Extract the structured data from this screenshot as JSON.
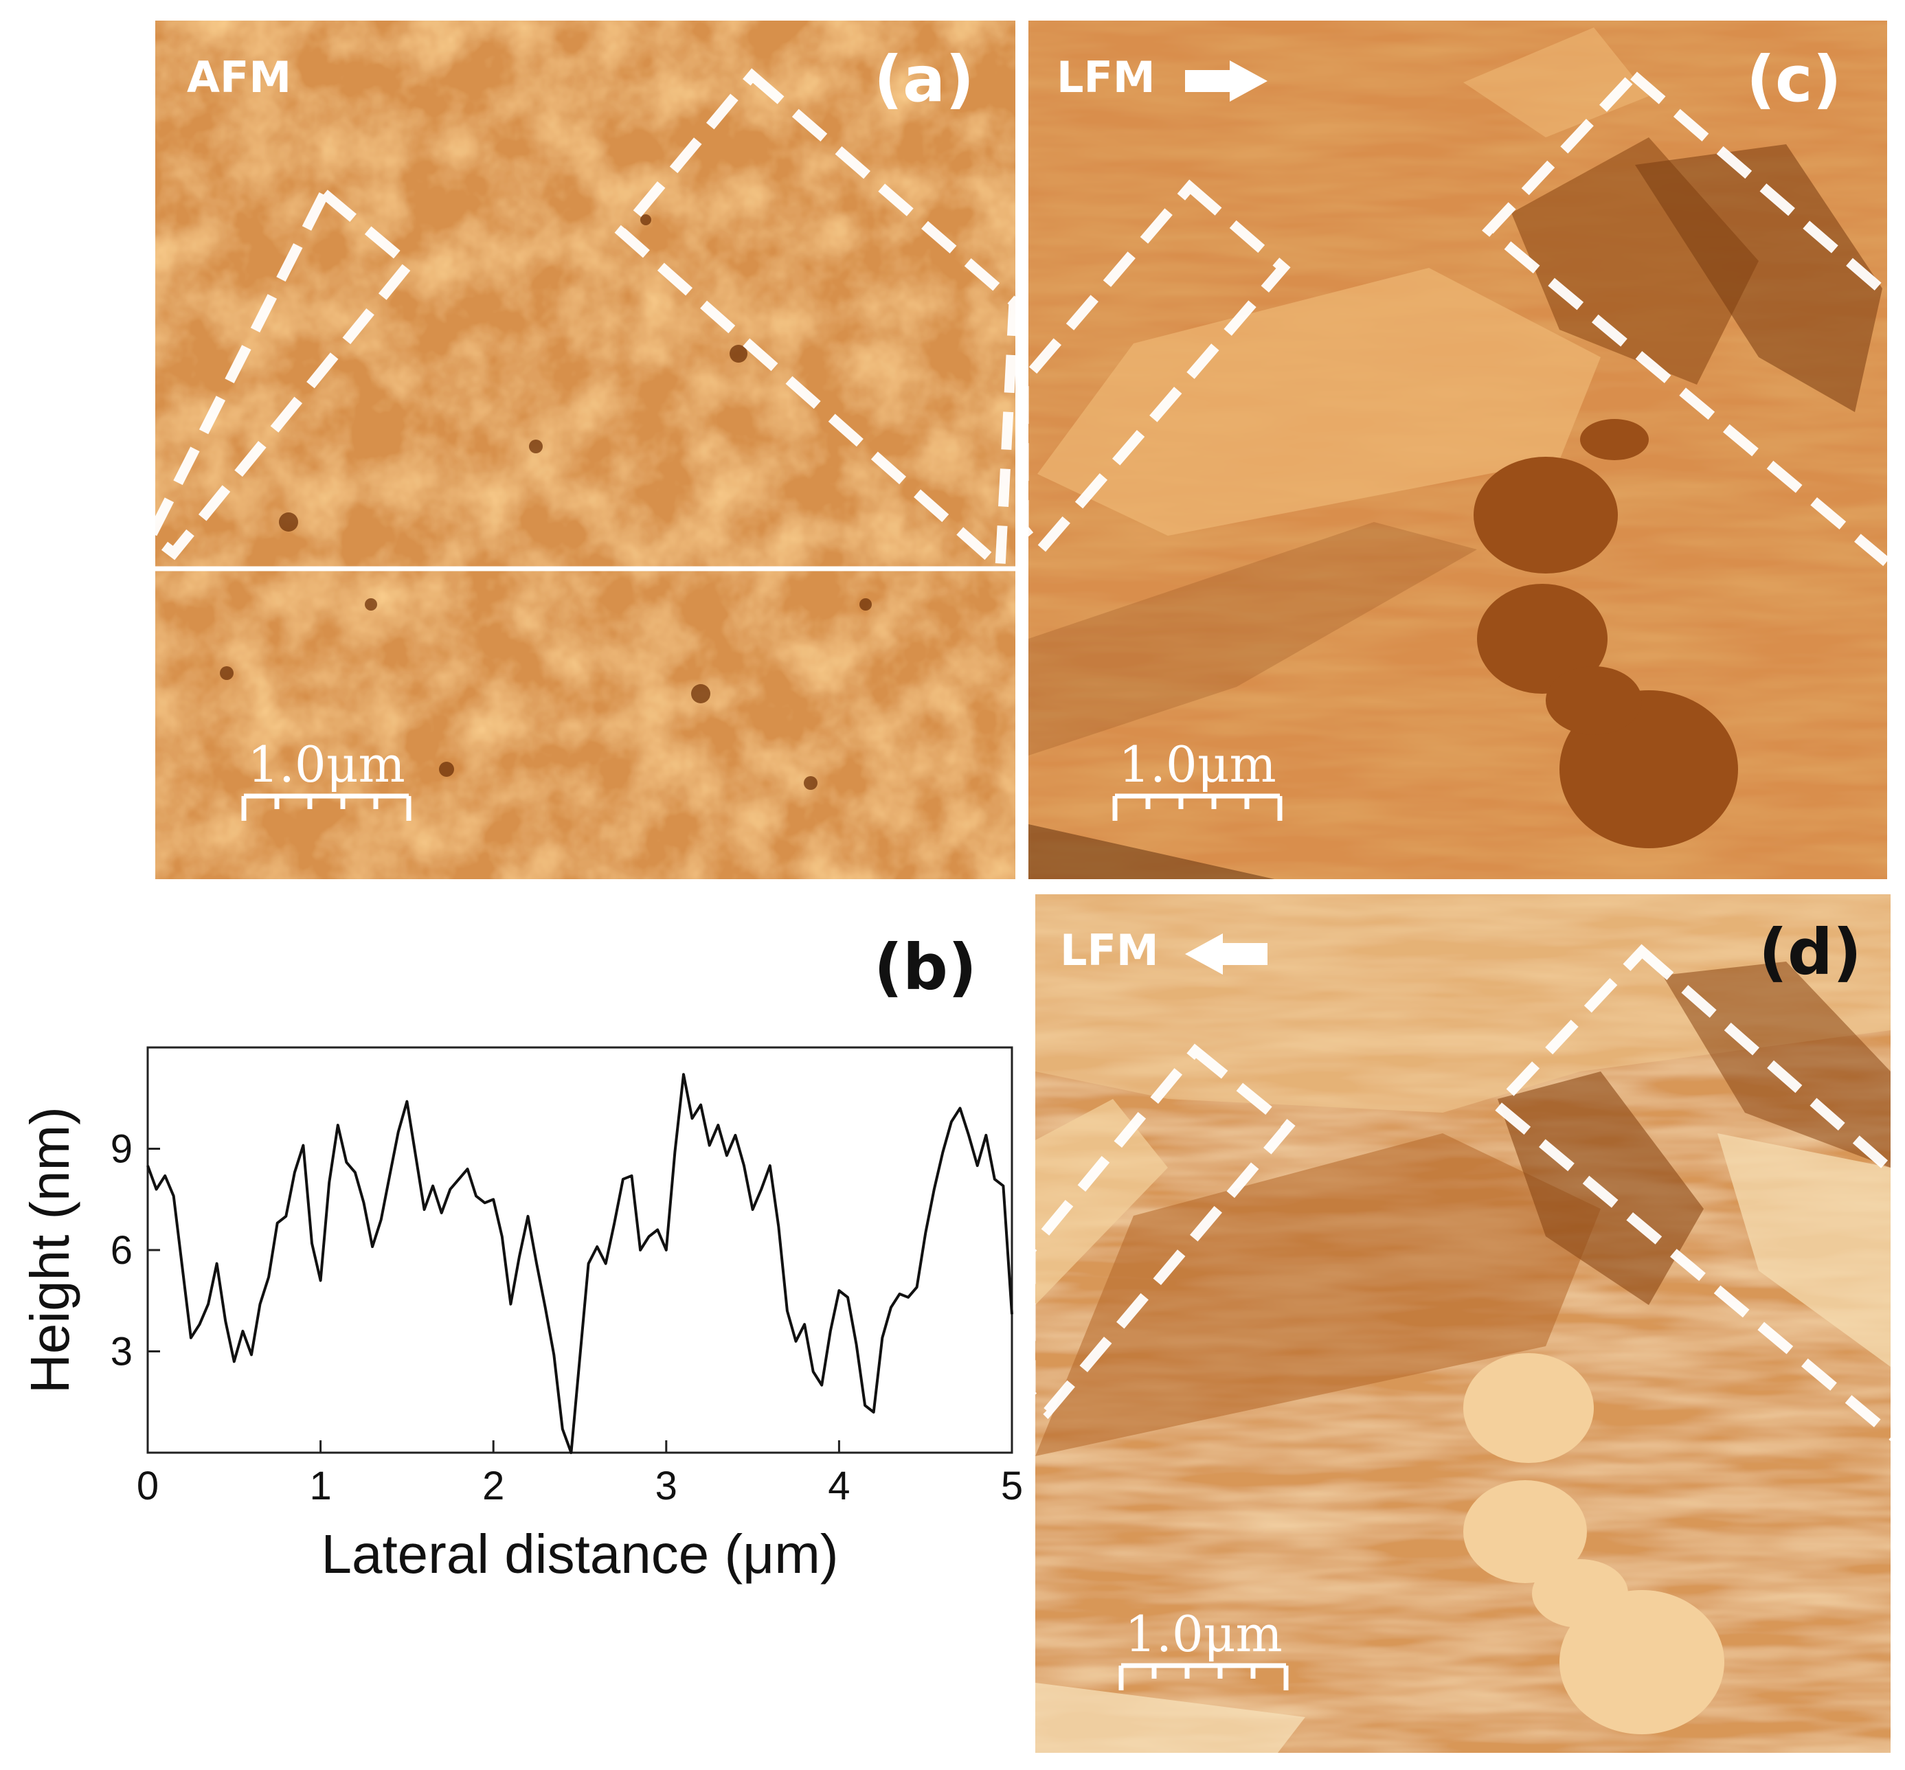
{
  "panels": {
    "a": {
      "letter": "(a)",
      "mode": "AFM",
      "scalebar": "1.0μm"
    },
    "b": {
      "letter": "(b)"
    },
    "c": {
      "letter": "(c)",
      "mode": "LFM",
      "scan_direction": "right",
      "scalebar": "1.0μm"
    },
    "d": {
      "letter": "(d)",
      "mode": "LFM",
      "scan_direction": "left",
      "scalebar": "1.0μm"
    }
  },
  "colors": {
    "afm_base": "#d58a40",
    "afm_light": "#f0c079",
    "afm_dark": "#7a3a0f",
    "dashed_box": "#ffffff",
    "curve": "#111111"
  },
  "chart_data": {
    "type": "line",
    "xlabel": "Lateral distance (μm)",
    "ylabel": "Height (nm)",
    "xlim": [
      0,
      5
    ],
    "ylim": [
      0,
      12
    ],
    "xticks": [
      0,
      1,
      2,
      3,
      4,
      5
    ],
    "yticks": [
      3,
      6,
      9
    ],
    "grid": false,
    "series": [
      {
        "x": [
          0.0,
          0.05,
          0.1,
          0.15,
          0.2,
          0.25,
          0.3,
          0.35,
          0.4,
          0.45,
          0.5,
          0.55,
          0.6,
          0.65,
          0.7,
          0.75,
          0.8,
          0.85,
          0.9,
          0.95,
          1.0,
          1.05,
          1.1,
          1.15,
          1.2,
          1.25,
          1.3,
          1.35,
          1.4,
          1.45,
          1.5,
          1.55,
          1.6,
          1.65,
          1.7,
          1.75,
          1.8,
          1.85,
          1.9,
          1.95,
          2.0,
          2.05,
          2.1,
          2.15,
          2.2,
          2.25,
          2.3,
          2.35,
          2.4,
          2.45,
          2.5,
          2.55,
          2.6,
          2.65,
          2.7,
          2.75,
          2.8,
          2.85,
          2.9,
          2.95,
          3.0,
          3.05,
          3.1,
          3.15,
          3.2,
          3.25,
          3.3,
          3.35,
          3.4,
          3.45,
          3.5,
          3.55,
          3.6,
          3.65,
          3.7,
          3.75,
          3.8,
          3.85,
          3.9,
          3.95,
          4.0,
          4.05,
          4.1,
          4.15,
          4.2,
          4.25,
          4.3,
          4.35,
          4.4,
          4.45,
          4.5,
          4.55,
          4.6,
          4.65,
          4.7,
          4.75,
          4.8,
          4.85,
          4.9,
          4.95,
          5.0
        ],
        "y": [
          8.5,
          7.8,
          8.2,
          7.6,
          5.5,
          3.4,
          3.8,
          4.4,
          5.6,
          3.9,
          2.7,
          3.6,
          2.9,
          4.4,
          5.2,
          6.8,
          7.0,
          8.3,
          9.1,
          6.2,
          5.1,
          8.0,
          9.7,
          8.6,
          8.3,
          7.4,
          6.1,
          6.9,
          8.2,
          9.5,
          10.4,
          8.8,
          7.2,
          7.9,
          7.1,
          7.8,
          8.1,
          8.4,
          7.6,
          7.4,
          7.5,
          6.4,
          4.4,
          5.8,
          7.0,
          5.6,
          4.3,
          2.9,
          0.7,
          0.0,
          2.8,
          5.6,
          6.1,
          5.6,
          6.8,
          8.1,
          8.2,
          6.0,
          6.4,
          6.6,
          6.0,
          8.9,
          11.2,
          9.9,
          10.3,
          9.1,
          9.7,
          8.8,
          9.4,
          8.5,
          7.2,
          7.8,
          8.5,
          6.7,
          4.2,
          3.3,
          3.8,
          2.4,
          2.0,
          3.6,
          4.8,
          4.6,
          3.2,
          1.4,
          1.2,
          3.4,
          4.3,
          4.7,
          4.6,
          4.9,
          6.5,
          7.8,
          8.9,
          9.8,
          10.2,
          9.4,
          8.5,
          9.4,
          8.1,
          7.9,
          4.1
        ]
      }
    ]
  }
}
